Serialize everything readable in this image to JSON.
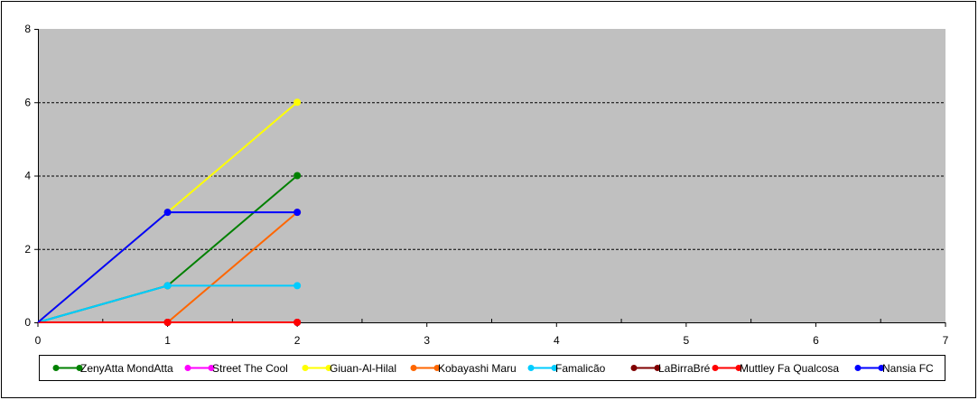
{
  "chart_data": {
    "type": "line",
    "title": "",
    "xlabel": "",
    "ylabel": "",
    "x": [
      0,
      1,
      2
    ],
    "xlim": [
      0,
      7
    ],
    "ylim": [
      0,
      8
    ],
    "x_ticks": [
      "0",
      "1",
      "2",
      "3",
      "4",
      "5",
      "6",
      "7"
    ],
    "y_ticks": [
      "0",
      "2",
      "4",
      "6",
      "8"
    ],
    "grid": "horizontal dashed",
    "plot_background": "#c0c0c0",
    "legend_position": "bottom",
    "series": [
      {
        "name": "ZenyAtta MondAtta",
        "color": "#008000",
        "values": [
          0,
          1,
          4
        ]
      },
      {
        "name": "Street The Cool",
        "color": "#ff00ff",
        "values": [
          0,
          0,
          0
        ]
      },
      {
        "name": "Giuan-Al-Hilal",
        "color": "#ffff00",
        "values": [
          0,
          3,
          6
        ]
      },
      {
        "name": "Kobayashi Maru",
        "color": "#ff6600",
        "values": [
          0,
          0,
          3
        ]
      },
      {
        "name": "Famalicão",
        "color": "#00ccff",
        "values": [
          0,
          1,
          1
        ]
      },
      {
        "name": "LaBirraBré",
        "color": "#800000",
        "values": [
          0,
          0,
          0
        ]
      },
      {
        "name": "Muttley Fa Qualcosa",
        "color": "#ff0000",
        "values": [
          0,
          0,
          0
        ]
      },
      {
        "name": "Nansia FC",
        "color": "#0000ff",
        "values": [
          0,
          3,
          3
        ]
      }
    ]
  }
}
